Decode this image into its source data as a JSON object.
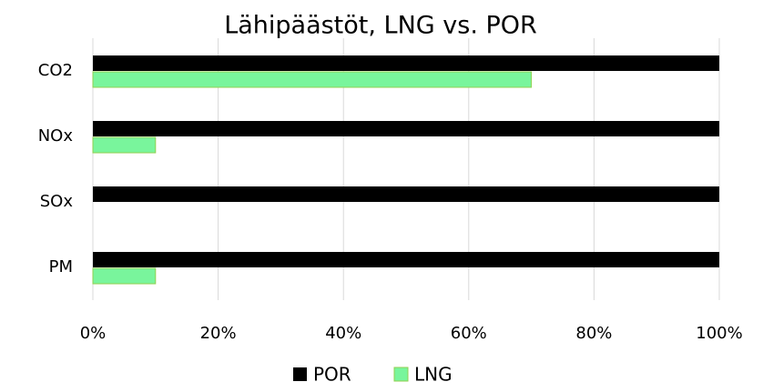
{
  "chart_data": {
    "type": "hbar",
    "title": "Lähipäästöt, LNG vs. POR",
    "categories": [
      "CO2",
      "NOx",
      "SOx",
      "PM"
    ],
    "series": [
      {
        "name": "POR",
        "color": "#000000",
        "values": [
          100,
          100,
          100,
          100
        ]
      },
      {
        "name": "LNG",
        "color": "#79f59c",
        "values": [
          70,
          10,
          0,
          10
        ]
      }
    ],
    "xlim": [
      0,
      100
    ],
    "xticks": [
      {
        "value": 0,
        "label": "0%"
      },
      {
        "value": 20,
        "label": "20%"
      },
      {
        "value": 40,
        "label": "40%"
      },
      {
        "value": 60,
        "label": "60%"
      },
      {
        "value": 80,
        "label": "80%"
      },
      {
        "value": 100,
        "label": "100%"
      }
    ],
    "grid": true,
    "legend": "bottom"
  }
}
